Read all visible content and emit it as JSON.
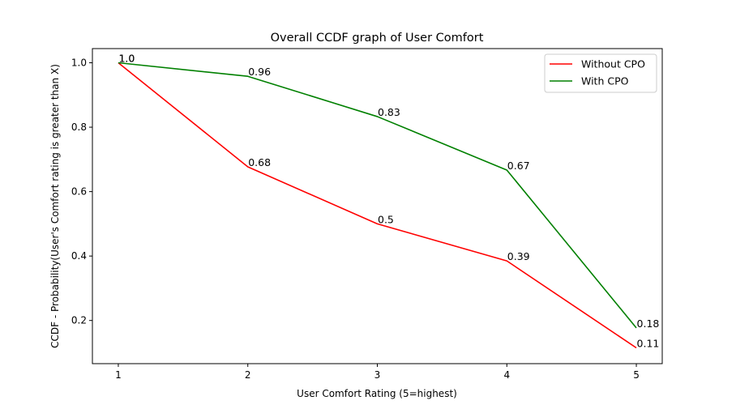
{
  "chart_data": {
    "type": "line",
    "title": "Overall CCDF graph of User Comfort",
    "xlabel": "User Comfort Rating (5=highest)",
    "ylabel": "CCDF - Probability(User's Comfort rating is greater than X)",
    "x": [
      1,
      2,
      3,
      4,
      5
    ],
    "xticks": [
      "1",
      "2",
      "3",
      "4",
      "5"
    ],
    "yticks": [
      0.2,
      0.4,
      0.6,
      0.8,
      1.0
    ],
    "ytick_labels": [
      "0.2",
      "0.4",
      "0.6",
      "0.8",
      "1.0"
    ],
    "xlim": [
      0.8,
      5.2
    ],
    "ylim": [
      0.066,
      1.044
    ],
    "grid": false,
    "legend": "top-right",
    "series": [
      {
        "name": "Without CPO",
        "color": "#ff0000",
        "values": [
          1.0,
          0.677,
          0.5,
          0.385,
          0.115
        ],
        "labels": [
          "1.0",
          "0.68",
          "0.5",
          "0.39",
          "0.11"
        ]
      },
      {
        "name": "With CPO",
        "color": "#008000",
        "values": [
          1.0,
          0.958,
          0.833,
          0.667,
          0.177
        ],
        "labels": [
          "1.0",
          "0.96",
          "0.83",
          "0.67",
          "0.18"
        ]
      }
    ]
  }
}
